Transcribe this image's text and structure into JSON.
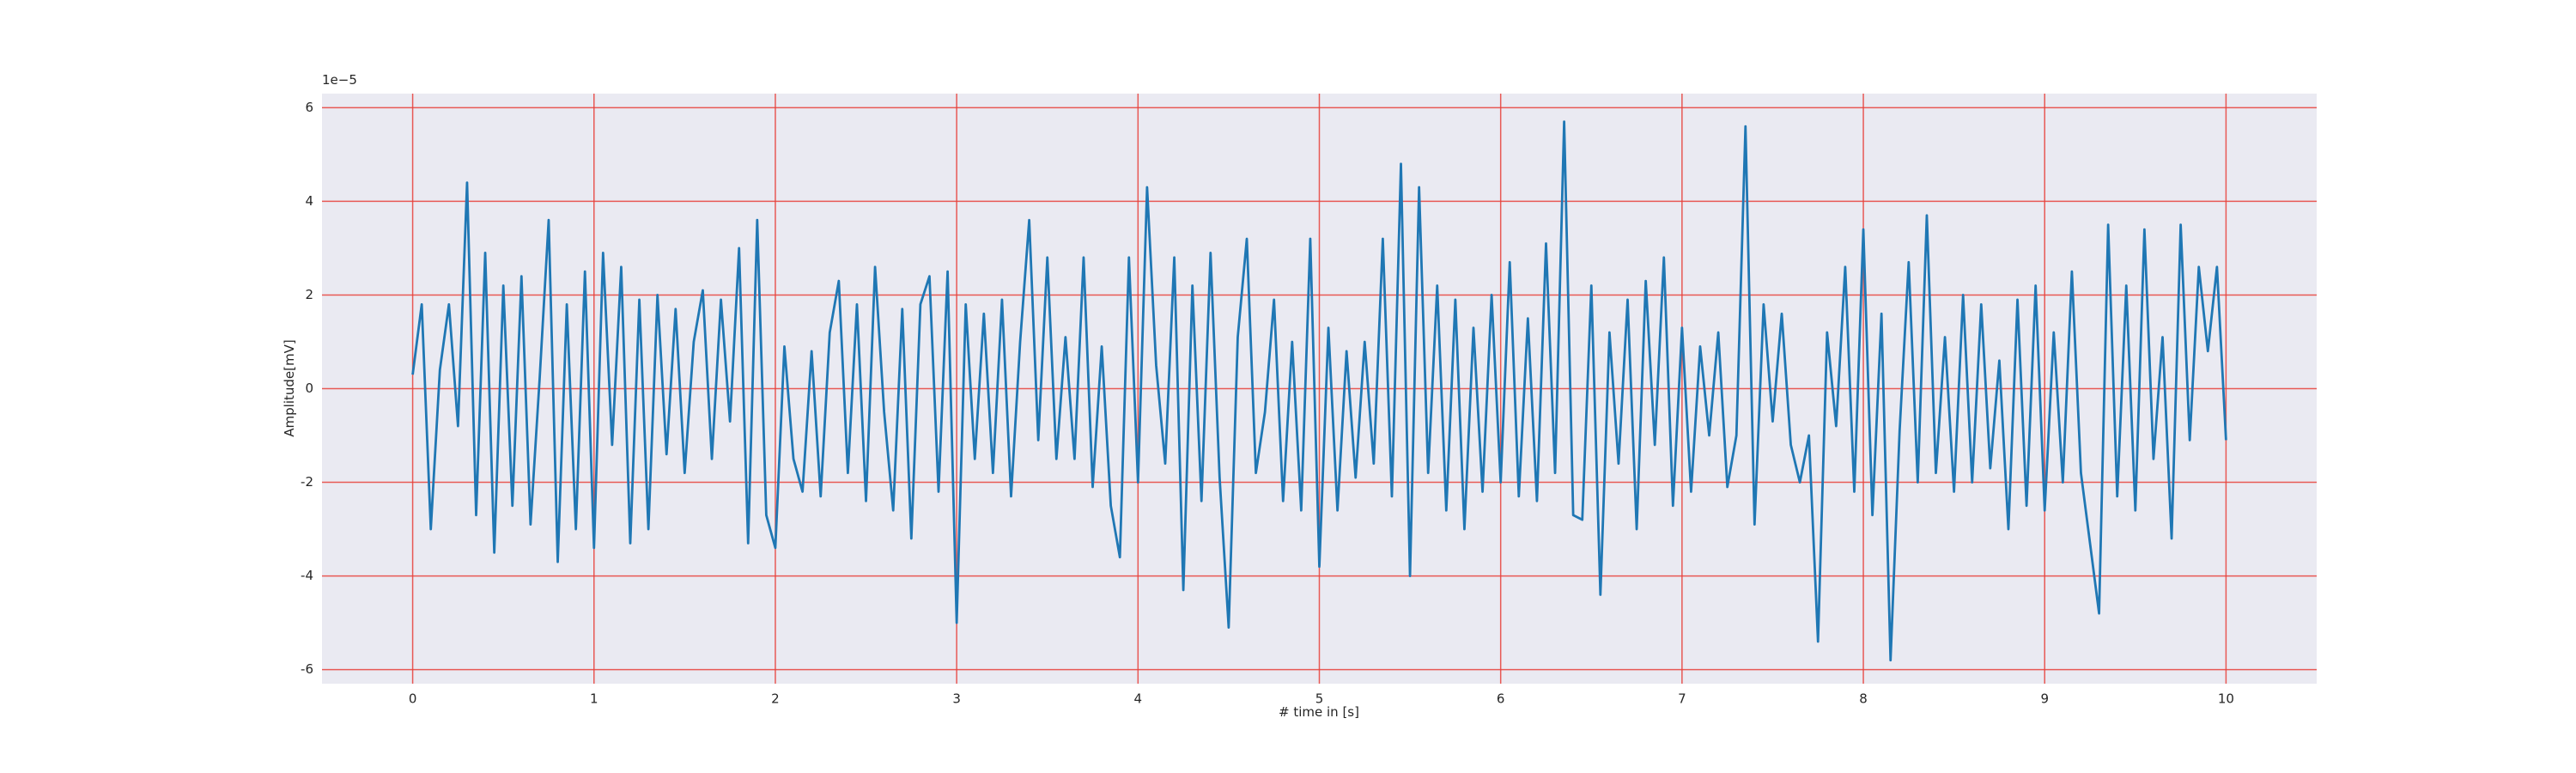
{
  "chart_data": {
    "type": "line",
    "offset_label": "1e−5",
    "x_label": "# time in [s]",
    "y_label": "Amplitude[mV]",
    "color": "#1f77b4",
    "grid": true,
    "grid_color": "#e8403a",
    "xlim": [
      -0.5,
      10.5
    ],
    "ylim": [
      -6.3,
      6.3
    ],
    "xticks": [
      0,
      1,
      2,
      3,
      4,
      5,
      6,
      7,
      8,
      9,
      10
    ],
    "yticks": [
      -6,
      -4,
      -2,
      0,
      2,
      4,
      6
    ],
    "x": [
      0,
      0.05,
      0.1,
      0.15,
      0.2,
      0.25,
      0.3,
      0.35,
      0.4,
      0.45,
      0.5,
      0.55,
      0.6,
      0.65,
      0.7,
      0.75,
      0.8,
      0.85,
      0.9,
      0.95,
      1,
      1.05,
      1.1,
      1.15,
      1.2,
      1.25,
      1.3,
      1.35,
      1.4,
      1.45,
      1.5,
      1.55,
      1.6,
      1.65,
      1.7,
      1.75,
      1.8,
      1.85,
      1.9,
      1.95,
      2,
      2.05,
      2.1,
      2.15,
      2.2,
      2.25,
      2.3,
      2.35,
      2.4,
      2.45,
      2.5,
      2.55,
      2.6,
      2.65,
      2.7,
      2.75,
      2.8,
      2.85,
      2.9,
      2.95,
      3,
      3.05,
      3.1,
      3.15,
      3.2,
      3.25,
      3.3,
      3.35,
      3.4,
      3.45,
      3.5,
      3.55,
      3.6,
      3.65,
      3.7,
      3.75,
      3.8,
      3.85,
      3.9,
      3.95,
      4,
      4.05,
      4.1,
      4.15,
      4.2,
      4.25,
      4.3,
      4.35,
      4.4,
      4.45,
      4.5,
      4.55,
      4.6,
      4.65,
      4.7,
      4.75,
      4.8,
      4.85,
      4.9,
      4.95,
      5,
      5.05,
      5.1,
      5.15,
      5.2,
      5.25,
      5.3,
      5.35,
      5.4,
      5.45,
      5.5,
      5.55,
      5.6,
      5.65,
      5.7,
      5.75,
      5.8,
      5.85,
      5.9,
      5.95,
      6,
      6.05,
      6.1,
      6.15,
      6.2,
      6.25,
      6.3,
      6.35,
      6.4,
      6.45,
      6.5,
      6.55,
      6.6,
      6.65,
      6.7,
      6.75,
      6.8,
      6.85,
      6.9,
      6.95,
      7,
      7.05,
      7.1,
      7.15,
      7.2,
      7.25,
      7.3,
      7.35,
      7.4,
      7.45,
      7.5,
      7.55,
      7.6,
      7.65,
      7.7,
      7.75,
      7.8,
      7.85,
      7.9,
      7.95,
      8,
      8.05,
      8.1,
      8.15,
      8.2,
      8.25,
      8.3,
      8.35,
      8.4,
      8.45,
      8.5,
      8.55,
      8.6,
      8.65,
      8.7,
      8.75,
      8.8,
      8.85,
      8.9,
      8.95,
      9,
      9.05,
      9.1,
      9.15,
      9.2,
      9.25,
      9.3,
      9.35,
      9.4,
      9.45,
      9.5,
      9.55,
      9.6,
      9.65,
      9.7,
      9.75,
      9.8,
      9.85,
      9.9,
      9.95,
      10
    ],
    "values": [
      0.3,
      1.8,
      -3.0,
      0.4,
      1.8,
      -0.8,
      4.4,
      -2.7,
      2.9,
      -3.5,
      2.2,
      -2.5,
      2.4,
      -2.9,
      0.2,
      3.6,
      -3.7,
      1.8,
      -3.0,
      2.5,
      -3.4,
      2.9,
      -1.2,
      2.6,
      -3.3,
      1.9,
      -3.0,
      2.0,
      -1.4,
      1.7,
      -1.8,
      1.0,
      2.1,
      -1.5,
      1.9,
      -0.7,
      3.0,
      -3.3,
      3.6,
      -2.7,
      -3.4,
      0.9,
      -1.5,
      -2.2,
      0.8,
      -2.3,
      1.2,
      2.3,
      -1.8,
      1.8,
      -2.4,
      2.6,
      -0.5,
      -2.6,
      1.7,
      -3.2,
      1.8,
      2.4,
      -2.2,
      2.5,
      -5.0,
      1.8,
      -1.5,
      1.6,
      -1.8,
      1.9,
      -2.3,
      1.0,
      3.6,
      -1.1,
      2.8,
      -1.5,
      1.1,
      -1.5,
      2.8,
      -2.1,
      0.9,
      -2.5,
      -3.6,
      2.8,
      -2.0,
      4.3,
      0.5,
      -1.6,
      2.8,
      -4.3,
      2.2,
      -2.4,
      2.9,
      -1.9,
      -5.1,
      1.1,
      3.2,
      -1.8,
      -0.5,
      1.9,
      -2.4,
      1.0,
      -2.6,
      3.2,
      -3.8,
      1.3,
      -2.6,
      0.8,
      -1.9,
      1.0,
      -1.6,
      3.2,
      -2.3,
      4.8,
      -4.0,
      4.3,
      -1.8,
      2.2,
      -2.6,
      1.9,
      -3.0,
      1.3,
      -2.2,
      2.0,
      -2.0,
      2.7,
      -2.3,
      1.5,
      -2.4,
      3.1,
      -1.8,
      5.7,
      -2.7,
      -2.8,
      2.2,
      -4.4,
      1.2,
      -1.6,
      1.9,
      -3.0,
      2.3,
      -1.2,
      2.8,
      -2.5,
      1.3,
      -2.2,
      0.9,
      -1.0,
      1.2,
      -2.1,
      -1.0,
      5.6,
      -2.9,
      1.8,
      -0.7,
      1.6,
      -1.2,
      -2.0,
      -1.0,
      -5.4,
      1.2,
      -0.8,
      2.6,
      -2.2,
      3.4,
      -2.7,
      1.6,
      -5.8,
      -0.9,
      2.7,
      -2.0,
      3.7,
      -1.8,
      1.1,
      -2.2,
      2.0,
      -2.0,
      1.8,
      -1.7,
      0.6,
      -3.0,
      1.9,
      -2.5,
      2.2,
      -2.6,
      1.2,
      -2.0,
      2.5,
      -1.8,
      -3.3,
      -4.8,
      3.5,
      -2.3,
      2.2,
      -2.6,
      3.4,
      -1.5,
      1.1,
      -3.2,
      3.5,
      -1.1,
      2.6,
      0.8,
      2.6,
      -1.1
    ]
  }
}
